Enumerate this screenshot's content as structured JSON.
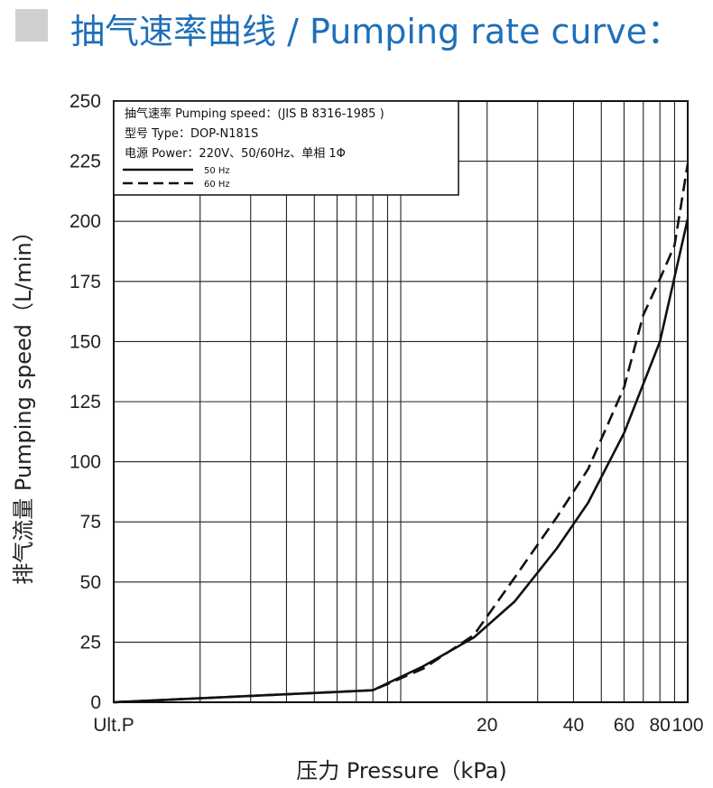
{
  "page": {
    "title": "抽气速率曲线 / Pumping rate curve："
  },
  "chart_data": {
    "type": "line",
    "xlabel": "压力 Pressure（kPa)",
    "ylabel": "排气流量 Pumping speed（L/min）",
    "xlim": [
      1,
      100
    ],
    "ylim": [
      0,
      250
    ],
    "x_scale": "log",
    "grid": true,
    "x_tick_labels": [
      {
        "value": 1,
        "label": "Ult.P"
      },
      {
        "value": 20,
        "label": "20"
      },
      {
        "value": 40,
        "label": "40"
      },
      {
        "value": 60,
        "label": "60"
      },
      {
        "value": 80,
        "label": "80"
      },
      {
        "value": 100,
        "label": "100"
      }
    ],
    "y_ticks": [
      0,
      25,
      50,
      75,
      100,
      125,
      150,
      175,
      200,
      225,
      250
    ],
    "info_lines": [
      "抽气速率 Pumping speed：(JIS B 8316-1985 )",
      "型号 Type：DOP-N181S",
      "电源 Power：220V、50/60Hz、单相 1Φ"
    ],
    "legend_placement": "top-left",
    "series": [
      {
        "name": "50 Hz",
        "style": "solid",
        "x": [
          1,
          8,
          12,
          18,
          25,
          35,
          45,
          60,
          80,
          100
        ],
        "y": [
          0,
          5,
          15,
          27,
          42,
          64,
          83,
          112,
          150,
          201
        ]
      },
      {
        "name": "60 Hz",
        "style": "dashed",
        "x": [
          1,
          8,
          12,
          18,
          25,
          35,
          45,
          60,
          70,
          80,
          90,
          100
        ],
        "y": [
          0,
          5,
          14,
          28,
          52,
          77,
          97,
          131,
          161,
          176,
          190,
          224
        ]
      }
    ]
  }
}
